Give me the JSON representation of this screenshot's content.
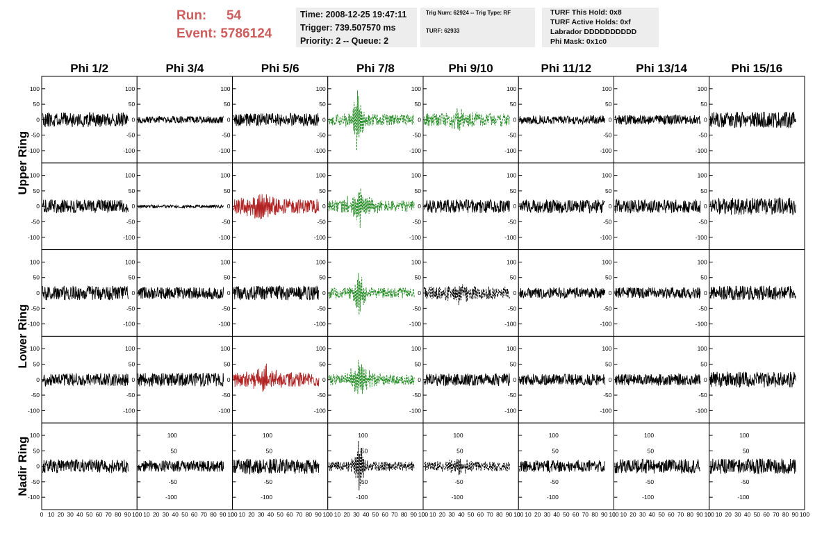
{
  "header": {
    "run_label": "Run:",
    "run_value": "54",
    "event_label": "Event:",
    "event_value": "5786124",
    "info_panel": {
      "time": "Time: 2008-12-25 19:47:11",
      "trigger": "Trigger: 739.507570 ms",
      "priority": "Priority: 2 -- Queue: 2"
    },
    "trig_panel": {
      "trig_line": "Trig Num: 62924 -- Trig Type: RF",
      "turf_line": "TURF: 62933"
    },
    "turf_panel": {
      "this_hold": "TURF This Hold: 0x8",
      "active_holds": "TURF Active Holds: 0xf",
      "labrador": "Labrador DDDDDDDDDD",
      "phi_mask": "Phi Mask: 0x1c0"
    }
  },
  "chart_data": {
    "type": "line",
    "columns": [
      "Phi 1/2",
      "Phi 3/4",
      "Phi 5/6",
      "Phi 7/8",
      "Phi 9/10",
      "Phi 11/12",
      "Phi 13/14",
      "Phi 15/16"
    ],
    "rows": [
      "Upper Ring",
      "Lower Ring",
      "Nadir Ring"
    ],
    "xlim": [
      0,
      100
    ],
    "ylim": [
      -140,
      140
    ],
    "y_ticks": [
      -100,
      -50,
      0,
      50,
      100
    ],
    "x_ticks": [
      0,
      10,
      20,
      30,
      40,
      50,
      60,
      70,
      80,
      90,
      100
    ],
    "colors": {
      "normal": "#000000",
      "triggered_l1": "#b22222",
      "triggered_phi": "#228b22",
      "masked": "#000000"
    },
    "panels": [
      {
        "row": 0,
        "col": 0,
        "style": "normal",
        "amp": 18,
        "pulse": 0,
        "pulse_at": 0,
        "seed": 11
      },
      {
        "row": 0,
        "col": 1,
        "style": "normal",
        "amp": 9,
        "pulse": 0,
        "pulse_at": 0,
        "seed": 12
      },
      {
        "row": 0,
        "col": 2,
        "style": "normal",
        "amp": 16,
        "pulse": 0,
        "pulse_at": 0,
        "seed": 13
      },
      {
        "row": 0,
        "col": 3,
        "style": "triggered_phi",
        "amp": 14,
        "pulse": 115,
        "pulse_at": 31,
        "seed": 14
      },
      {
        "row": 0,
        "col": 4,
        "style": "triggered_phi",
        "amp": 16,
        "pulse": 35,
        "pulse_at": 40,
        "seed": 15
      },
      {
        "row": 0,
        "col": 5,
        "style": "normal",
        "amp": 11,
        "pulse": 0,
        "pulse_at": 0,
        "seed": 16
      },
      {
        "row": 0,
        "col": 6,
        "style": "normal",
        "amp": 12,
        "pulse": 0,
        "pulse_at": 0,
        "seed": 17
      },
      {
        "row": 0,
        "col": 7,
        "style": "normal",
        "amp": 20,
        "pulse": 0,
        "pulse_at": 0,
        "seed": 18
      },
      {
        "row": 1,
        "col": 0,
        "style": "normal",
        "amp": 17,
        "pulse": 0,
        "pulse_at": 0,
        "seed": 21
      },
      {
        "row": 1,
        "col": 1,
        "style": "normal",
        "amp": 4,
        "pulse": 0,
        "pulse_at": 0,
        "seed": 22
      },
      {
        "row": 1,
        "col": 2,
        "style": "triggered_l1",
        "amp": 18,
        "pulse": 50,
        "pulse_at": 28,
        "seed": 23
      },
      {
        "row": 1,
        "col": 3,
        "style": "triggered_phi",
        "amp": 14,
        "pulse": 65,
        "pulse_at": 33,
        "seed": 24
      },
      {
        "row": 1,
        "col": 4,
        "style": "normal",
        "amp": 17,
        "pulse": 0,
        "pulse_at": 0,
        "seed": 25
      },
      {
        "row": 1,
        "col": 5,
        "style": "normal",
        "amp": 17,
        "pulse": 0,
        "pulse_at": 0,
        "seed": 26
      },
      {
        "row": 1,
        "col": 6,
        "style": "normal",
        "amp": 17,
        "pulse": 0,
        "pulse_at": 0,
        "seed": 27
      },
      {
        "row": 1,
        "col": 7,
        "style": "normal",
        "amp": 22,
        "pulse": 0,
        "pulse_at": 0,
        "seed": 28
      },
      {
        "row": 2,
        "col": 0,
        "style": "normal",
        "amp": 18,
        "pulse": 0,
        "pulse_at": 0,
        "seed": 31
      },
      {
        "row": 2,
        "col": 1,
        "style": "normal",
        "amp": 15,
        "pulse": 0,
        "pulse_at": 0,
        "seed": 32
      },
      {
        "row": 2,
        "col": 2,
        "style": "normal",
        "amp": 18,
        "pulse": 0,
        "pulse_at": 0,
        "seed": 33
      },
      {
        "row": 2,
        "col": 3,
        "style": "triggered_phi",
        "amp": 13,
        "pulse": 90,
        "pulse_at": 33,
        "seed": 34
      },
      {
        "row": 2,
        "col": 4,
        "style": "masked",
        "amp": 16,
        "pulse": 28,
        "pulse_at": 38,
        "seed": 35
      },
      {
        "row": 2,
        "col": 5,
        "style": "normal",
        "amp": 13,
        "pulse": 0,
        "pulse_at": 0,
        "seed": 36
      },
      {
        "row": 2,
        "col": 6,
        "style": "normal",
        "amp": 14,
        "pulse": 0,
        "pulse_at": 0,
        "seed": 37
      },
      {
        "row": 2,
        "col": 7,
        "style": "normal",
        "amp": 18,
        "pulse": 0,
        "pulse_at": 0,
        "seed": 38
      },
      {
        "row": 3,
        "col": 0,
        "style": "normal",
        "amp": 16,
        "pulse": 0,
        "pulse_at": 0,
        "seed": 41
      },
      {
        "row": 3,
        "col": 1,
        "style": "normal",
        "amp": 17,
        "pulse": 0,
        "pulse_at": 0,
        "seed": 42
      },
      {
        "row": 3,
        "col": 2,
        "style": "triggered_l1",
        "amp": 18,
        "pulse": 45,
        "pulse_at": 33,
        "seed": 43
      },
      {
        "row": 3,
        "col": 3,
        "style": "triggered_phi",
        "amp": 13,
        "pulse": 65,
        "pulse_at": 33,
        "seed": 44
      },
      {
        "row": 3,
        "col": 4,
        "style": "normal",
        "amp": 16,
        "pulse": 0,
        "pulse_at": 0,
        "seed": 45
      },
      {
        "row": 3,
        "col": 5,
        "style": "normal",
        "amp": 14,
        "pulse": 0,
        "pulse_at": 0,
        "seed": 46
      },
      {
        "row": 3,
        "col": 6,
        "style": "normal",
        "amp": 14,
        "pulse": 0,
        "pulse_at": 0,
        "seed": 47
      },
      {
        "row": 3,
        "col": 7,
        "style": "normal",
        "amp": 20,
        "pulse": 0,
        "pulse_at": 0,
        "seed": 48
      },
      {
        "row": 4,
        "col": 0,
        "style": "normal",
        "amp": 17,
        "pulse": 0,
        "pulse_at": 0,
        "seed": 51
      },
      {
        "row": 4,
        "col": 1,
        "style": "normal",
        "amp": 14,
        "pulse": 0,
        "pulse_at": 0,
        "seed": 52
      },
      {
        "row": 4,
        "col": 2,
        "style": "normal",
        "amp": 19,
        "pulse": 0,
        "pulse_at": 0,
        "seed": 53
      },
      {
        "row": 4,
        "col": 3,
        "style": "masked",
        "amp": 12,
        "pulse": 90,
        "pulse_at": 33,
        "seed": 54
      },
      {
        "row": 4,
        "col": 4,
        "style": "masked",
        "amp": 12,
        "pulse": 25,
        "pulse_at": 38,
        "seed": 55
      },
      {
        "row": 4,
        "col": 5,
        "style": "normal",
        "amp": 15,
        "pulse": 0,
        "pulse_at": 0,
        "seed": 56
      },
      {
        "row": 4,
        "col": 6,
        "style": "normal",
        "amp": 18,
        "pulse": 0,
        "pulse_at": 0,
        "seed": 57
      },
      {
        "row": 4,
        "col": 7,
        "style": "normal",
        "amp": 19,
        "pulse": 0,
        "pulse_at": 0,
        "seed": 58
      }
    ]
  }
}
